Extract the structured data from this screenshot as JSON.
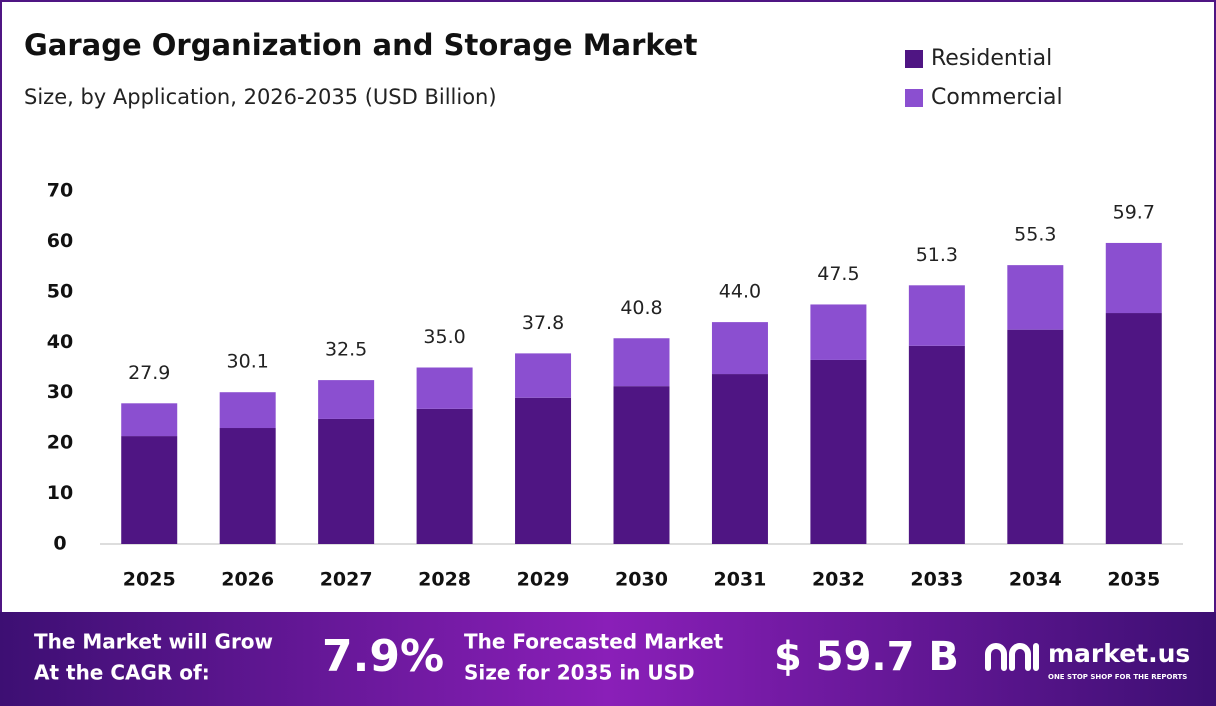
{
  "chart_data": {
    "type": "stacked_bar",
    "title": "Garage Organization and Storage Market",
    "subtitle": "Size, by Application, 2026-2035 (USD Billion)",
    "categories": [
      "2025",
      "2026",
      "2027",
      "2028",
      "2029",
      "2030",
      "2031",
      "2032",
      "2033",
      "2034",
      "2035"
    ],
    "series": [
      {
        "name": "Residential",
        "color": "#4f1583",
        "values": [
          21.4,
          23.0,
          24.8,
          26.8,
          29.0,
          31.3,
          33.7,
          36.5,
          39.3,
          42.5,
          45.8
        ]
      },
      {
        "name": "Commercial",
        "color": "#8b4fd0",
        "values": [
          6.5,
          7.1,
          7.7,
          8.2,
          8.8,
          9.5,
          10.3,
          11.0,
          12.0,
          12.8,
          13.9
        ]
      }
    ],
    "totals": [
      27.9,
      30.1,
      32.5,
      35.0,
      37.8,
      40.8,
      44.0,
      47.5,
      51.3,
      55.3,
      59.7
    ],
    "total_labels": [
      "27.9",
      "30.1",
      "32.5",
      "35.0",
      "37.8",
      "40.8",
      "44.0",
      "47.5",
      "51.3",
      "55.3",
      "59.7"
    ],
    "ylim": [
      0,
      70
    ],
    "yticks": [
      0,
      10,
      20,
      30,
      40,
      50,
      60,
      70
    ],
    "grid": false,
    "legend": "top-right"
  },
  "footer": {
    "cagr_label": [
      "The Market will Grow",
      "At the CAGR of:"
    ],
    "cagr": "7.9%",
    "forecast_label": [
      "The Forecasted Market",
      "Size for 2035 in USD"
    ],
    "forecast_value": "$ 59.7 B",
    "brand": "market.us",
    "tagline": "ONE STOP SHOP FOR THE REPORTS"
  }
}
